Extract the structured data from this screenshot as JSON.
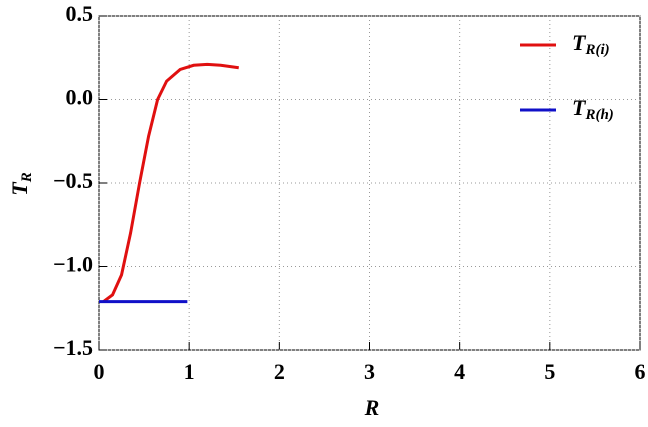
{
  "chart_data": {
    "type": "line",
    "xlabel": "R",
    "ylabel": "TR",
    "xlim": [
      0,
      6
    ],
    "xticks": [
      0,
      1,
      2,
      3,
      4,
      5,
      6
    ],
    "ylim": [
      -1.5,
      0.5
    ],
    "yticks": [
      {
        "value": -1.5,
        "label": "−1.5"
      },
      {
        "value": -1.0,
        "label": "−1.0"
      },
      {
        "value": -0.5,
        "label": "−0.5"
      },
      {
        "value": 0.0,
        "label": "0.0"
      },
      {
        "value": 0.5,
        "label": "0.5"
      }
    ],
    "grid": true,
    "legend": "top-right",
    "series": [
      {
        "name": "TR(i)",
        "color": "#e01010",
        "x": [
          0.05,
          0.15,
          0.25,
          0.35,
          0.45,
          0.55,
          0.65,
          0.75,
          0.9,
          1.05,
          1.2,
          1.35,
          1.55
        ],
        "values": [
          -1.21,
          -1.17,
          -1.05,
          -0.8,
          -0.5,
          -0.22,
          0.0,
          0.11,
          0.18,
          0.205,
          0.21,
          0.205,
          0.19
        ]
      },
      {
        "name": "TR(h)",
        "color": "#1010c8",
        "x": [
          0,
          0.98
        ],
        "values": [
          -1.21,
          -1.21
        ]
      }
    ]
  }
}
